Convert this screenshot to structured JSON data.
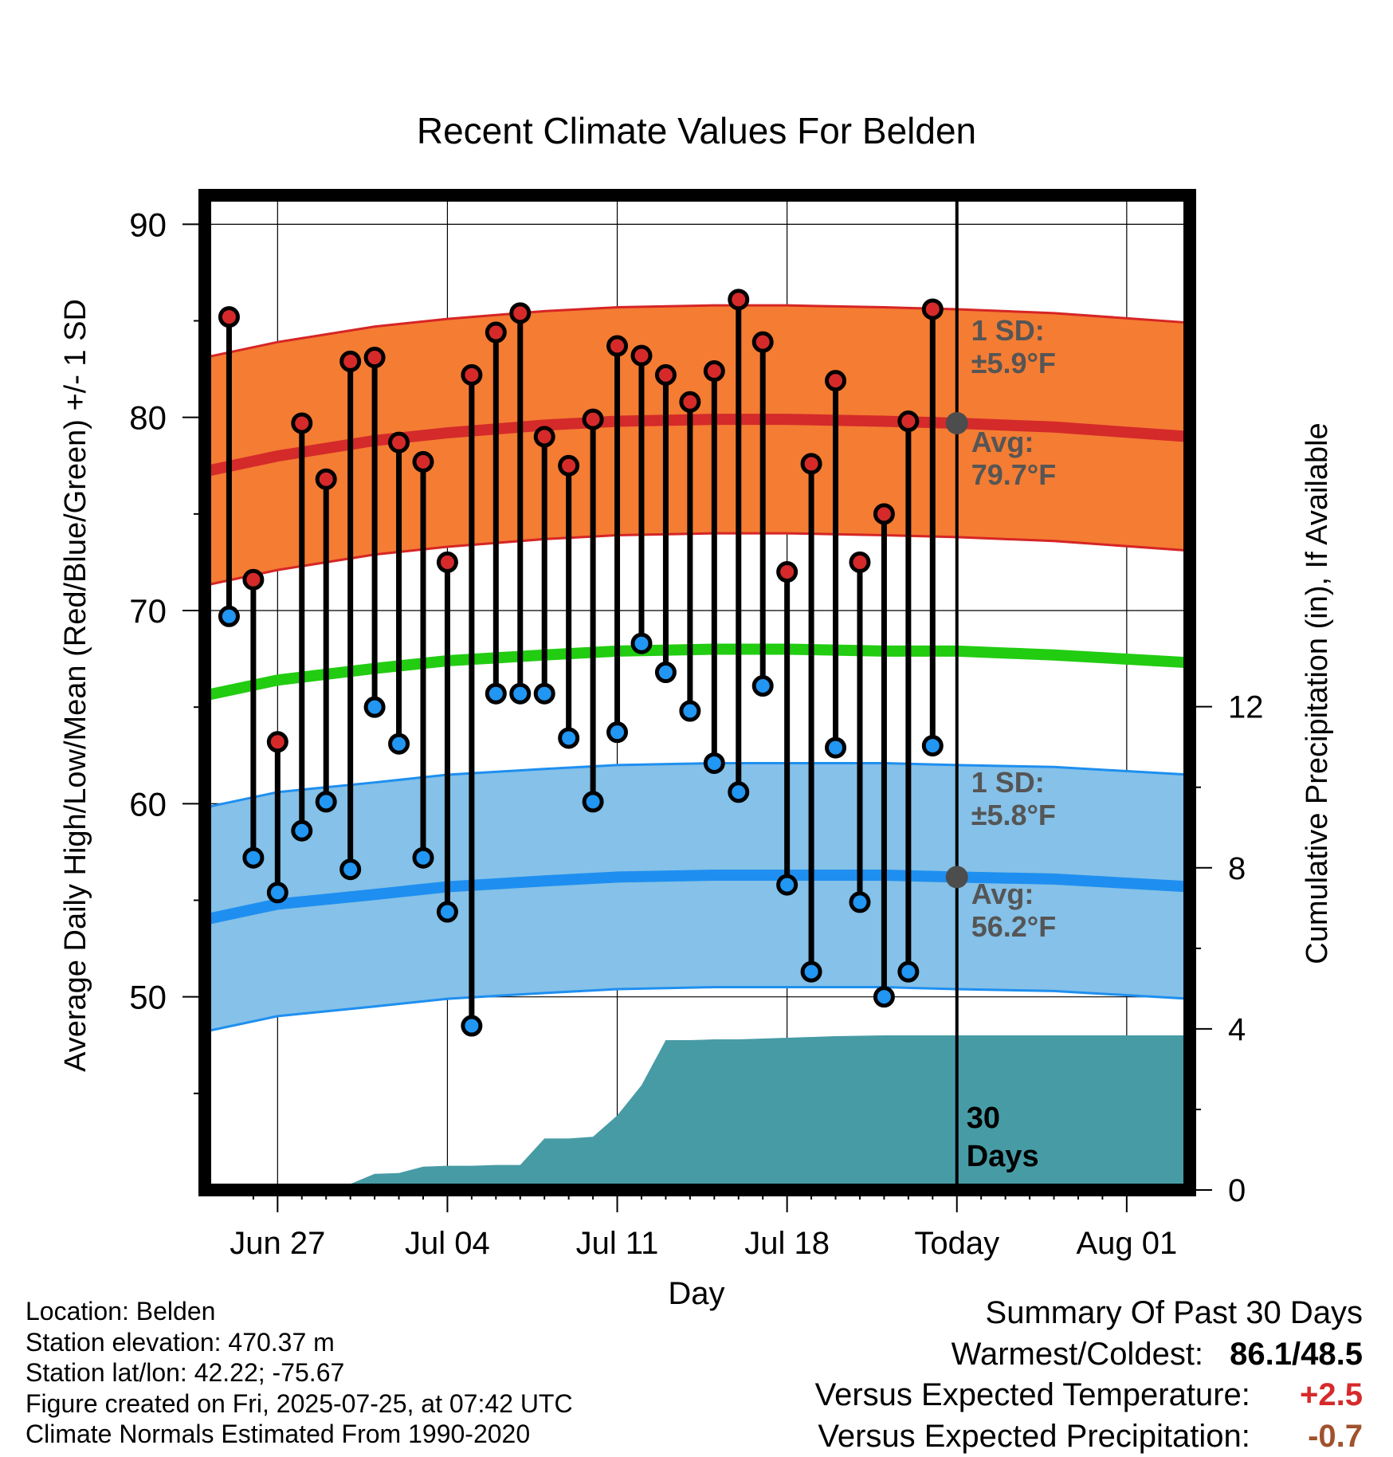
{
  "chart_data": {
    "type": "line",
    "title": "Recent Climate Values For Belden",
    "xlabel": "Day",
    "ylabel_left": "Average Daily High/Low/Mean (Red/Blue/Green) +/- 1 SD",
    "ylabel_right": "Cumulative Precipitation (in), If Available",
    "x_tick_labels": [
      "Jun 27",
      "Jul 04",
      "Jul 11",
      "Jul 18",
      "Today",
      "Aug 01"
    ],
    "y_left_ticks": [
      50,
      60,
      70,
      80,
      90
    ],
    "y_right_ticks": [
      0,
      4,
      8,
      12
    ],
    "y_left_range": [
      40,
      91.5
    ],
    "y_right_range": [
      0,
      24.7
    ],
    "x_range_days_relative_to_today": [
      -31,
      9.6
    ],
    "grid": true,
    "today_marker_label": "30 Days",
    "daily": {
      "days_relative_to_today": [
        -30,
        -29,
        -28,
        -27,
        -26,
        -25,
        -24,
        -23,
        -22,
        -21,
        -20,
        -19,
        -18,
        -17,
        -16,
        -15,
        -14,
        -13,
        -12,
        -11,
        -10,
        -9,
        -8,
        -7,
        -6,
        -5,
        -4,
        -3,
        -2,
        -1
      ],
      "high": [
        85.2,
        71.6,
        63.2,
        79.7,
        76.8,
        82.9,
        83.1,
        78.7,
        77.7,
        72.5,
        82.2,
        84.4,
        85.4,
        79.0,
        77.5,
        79.9,
        83.7,
        83.2,
        82.2,
        80.8,
        82.4,
        86.1,
        83.9,
        72.0,
        77.6,
        81.9,
        72.5,
        75.0,
        79.8,
        85.6
      ],
      "low": [
        69.7,
        57.2,
        55.4,
        58.6,
        60.1,
        56.6,
        65.0,
        63.1,
        57.2,
        54.4,
        48.5,
        65.7,
        65.7,
        65.7,
        63.4,
        60.1,
        63.7,
        68.3,
        66.8,
        64.8,
        62.1,
        60.6,
        66.1,
        55.8,
        51.3,
        62.9,
        54.9,
        50.0,
        51.3,
        63.0
      ]
    },
    "normals": {
      "days_relative_to_today": [
        -31,
        -28,
        -24,
        -21,
        -17,
        -14,
        -10,
        -7,
        -3,
        0,
        4,
        9.6
      ],
      "avg_high": [
        77.2,
        78.0,
        78.8,
        79.2,
        79.6,
        79.8,
        79.9,
        79.9,
        79.8,
        79.7,
        79.5,
        79.0
      ],
      "avg_low": [
        54.0,
        54.8,
        55.3,
        55.7,
        56.0,
        56.2,
        56.3,
        56.3,
        56.3,
        56.2,
        56.1,
        55.7
      ],
      "avg_mean": [
        65.6,
        66.4,
        67.0,
        67.4,
        67.7,
        67.9,
        68.0,
        68.0,
        67.9,
        67.9,
        67.7,
        67.3
      ],
      "high_sd": 5.9,
      "low_sd": 5.8
    },
    "precipitation": {
      "days_relative_to_today": [
        -31,
        -28,
        -26,
        -25,
        -24,
        -23,
        -22,
        -21,
        -20,
        -19,
        -18,
        -17,
        -16,
        -15,
        -14,
        -13,
        -12,
        -11,
        -10,
        -9,
        -8,
        -7,
        -5,
        -3,
        0,
        9.6
      ],
      "cumulative": [
        0,
        0,
        0,
        0.15,
        0.4,
        0.42,
        0.58,
        0.6,
        0.6,
        0.62,
        0.62,
        1.28,
        1.28,
        1.32,
        1.85,
        2.6,
        3.72,
        3.72,
        3.74,
        3.74,
        3.76,
        3.78,
        3.82,
        3.84,
        3.84,
        3.84
      ]
    },
    "annotations": {
      "high_sd_label": "1 SD:",
      "high_sd_value": "±5.9°F",
      "high_avg_label": "Avg:",
      "high_avg_value": "79.7°F",
      "low_sd_label": "1 SD:",
      "low_sd_value": "±5.8°F",
      "low_avg_label": "Avg:",
      "low_avg_value": "56.2°F"
    },
    "colors": {
      "high_band": "#f47c33",
      "high_band_edge": "#d62525",
      "avg_high_line": "#d42a2a",
      "low_band": "#85c1e8",
      "low_band_edge": "#1e8ff0",
      "avg_low_line": "#1e8ff0",
      "avg_mean_line": "#22cc11",
      "precip_fill": "#479ba5",
      "high_dot": "#d62a2a",
      "low_dot": "#2196f3",
      "annotation_text": "#555555",
      "today_marker": "#4d4d4d"
    }
  },
  "info": {
    "location": "Location: Belden",
    "elevation": "Station elevation: 470.37 m",
    "latlon": "Station lat/lon: 42.22; -75.67",
    "created": "Figure created on Fri, 2025-07-25, at 07:42 UTC",
    "normals_source": "Climate Normals Estimated From 1990-2020"
  },
  "summary": {
    "heading": "Summary Of Past 30 Days",
    "warmest_coldest_label": "Warmest/Coldest:",
    "warmest_coldest_value": "86.1/48.5",
    "temp_label": "Versus Expected Temperature:",
    "temp_value": "+2.5",
    "temp_color": "#d62a2a",
    "precip_label": "Versus Expected Precipitation:",
    "precip_value": "-0.7",
    "precip_color": "#a0522d"
  }
}
